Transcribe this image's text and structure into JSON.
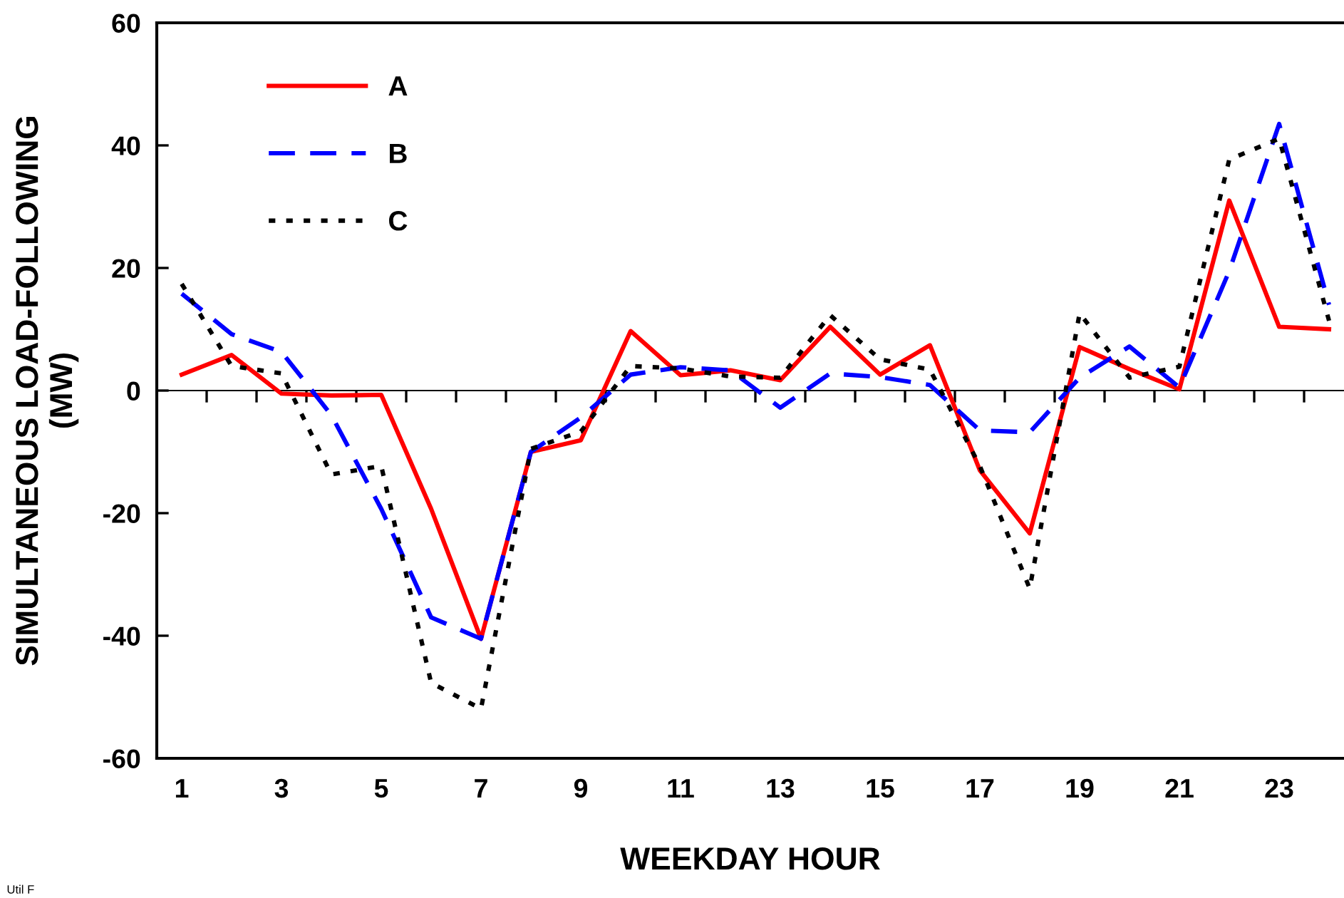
{
  "chart_data": {
    "type": "line",
    "xlabel": "WEEKDAY HOUR",
    "ylabel": "SIMULTANEOUS LOAD-FOLLOWING\n(MW)",
    "x": [
      1,
      2,
      3,
      4,
      5,
      6,
      7,
      8,
      9,
      10,
      11,
      12,
      13,
      14,
      15,
      16,
      17,
      18,
      19,
      20,
      21,
      22,
      23,
      24
    ],
    "series": [
      {
        "name": "A",
        "color": "#ff0000",
        "line_style": "solid",
        "values": [
          2.6,
          5.8,
          -0.5,
          -0.8,
          -0.7,
          -19.3,
          -40.5,
          -10,
          -8.1,
          9.7,
          2.5,
          3.3,
          1.7,
          10.4,
          2.6,
          7.4,
          -13,
          -23.3,
          7.1,
          3.5,
          0.2,
          31,
          10.4,
          10
        ]
      },
      {
        "name": "B",
        "color": "#0000ff",
        "line_style": "dashed",
        "values": [
          15.8,
          9.2,
          6.3,
          -4,
          -19.3,
          -37,
          -40.5,
          -10,
          -4.4,
          2.6,
          3.8,
          3.3,
          -2.8,
          2.8,
          2.2,
          0.9,
          -6.5,
          -6.8,
          2.1,
          7.2,
          0.5,
          19.5,
          43.5,
          14
        ]
      },
      {
        "name": "C",
        "color": "#000000",
        "line_style": "dotted",
        "values": [
          17.4,
          4,
          2.8,
          -13.7,
          -12.3,
          -47.7,
          -51.9,
          -9.5,
          -6.7,
          4,
          3.6,
          2.3,
          2.1,
          12.3,
          5.1,
          3.4,
          -12.3,
          -32.3,
          12.6,
          2.1,
          3.9,
          37.7,
          41.1,
          11.4
        ]
      }
    ],
    "xlim": [
      0.5,
      24.3
    ],
    "ylim": [
      -60,
      60
    ],
    "xticks": [
      {
        "value": 0.5,
        "label": null
      },
      1,
      {
        "value": 1.5,
        "label": null
      },
      {
        "value": 2.5,
        "label": null
      },
      3,
      {
        "value": 3.5,
        "label": null
      },
      {
        "value": 4.5,
        "label": null
      },
      5,
      {
        "value": 5.5,
        "label": null
      },
      {
        "value": 6.5,
        "label": null
      },
      7,
      {
        "value": 7.5,
        "label": null
      },
      {
        "value": 8.5,
        "label": null
      },
      9,
      {
        "value": 9.5,
        "label": null
      },
      {
        "value": 10.5,
        "label": null
      },
      11,
      {
        "value": 11.5,
        "label": null
      },
      {
        "value": 12.5,
        "label": null
      },
      13,
      {
        "value": 13.5,
        "label": null
      },
      {
        "value": 14.5,
        "label": null
      },
      15,
      {
        "value": 15.5,
        "label": null
      },
      {
        "value": 16.5,
        "label": null
      },
      17,
      {
        "value": 17.5,
        "label": null
      },
      {
        "value": 18.5,
        "label": null
      },
      19,
      {
        "value": 19.5,
        "label": null
      },
      {
        "value": 20.5,
        "label": null
      },
      21,
      {
        "value": 21.5,
        "label": null
      },
      {
        "value": 22.5,
        "label": null
      },
      23,
      {
        "value": 23.5,
        "label": null
      }
    ],
    "yticks": [
      -60,
      -40,
      -20,
      0,
      20,
      40,
      60
    ],
    "legend": "top left",
    "marker": "none",
    "annotations": [
      "Util F"
    ]
  }
}
